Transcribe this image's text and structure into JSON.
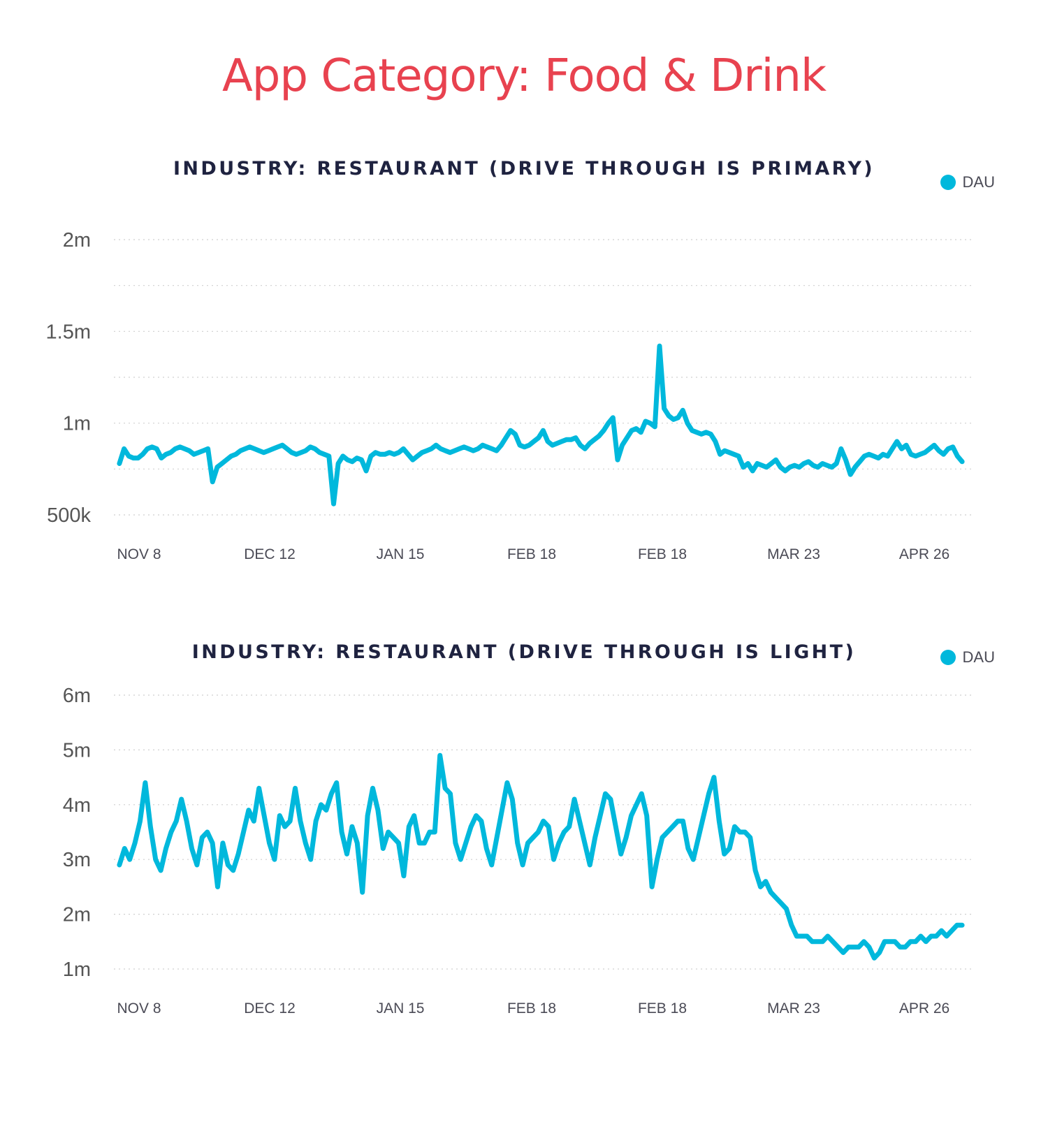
{
  "title": "App Category: Food & Drink",
  "colors": {
    "title": "#e8424f",
    "heading": "#1f2340",
    "series": "#00b8dc",
    "grid": "#cfcfcf"
  },
  "chart_data": [
    {
      "type": "line",
      "title": "INDUSTRY: RESTAURANT (DRIVE THROUGH IS PRIMARY)",
      "legend": [
        "DAU"
      ],
      "legend_position": "top-right",
      "grid": true,
      "ylim": [
        500000,
        2000000
      ],
      "yticks": [
        {
          "value": 500000,
          "label": "500k"
        },
        {
          "value": 1000000,
          "label": "1m"
        },
        {
          "value": 1500000,
          "label": "1.5m"
        },
        {
          "value": 2000000,
          "label": "2m"
        }
      ],
      "xticks": [
        "NOV 8",
        "DEC 12",
        "JAN 15",
        "FEB 18",
        "FEB 18",
        "MAR 23",
        "APR 26"
      ],
      "series": [
        {
          "name": "DAU",
          "x_range_label_index": [
            -0.15,
            6.3
          ],
          "values": [
            780000,
            860000,
            820000,
            810000,
            810000,
            830000,
            860000,
            870000,
            860000,
            810000,
            830000,
            840000,
            860000,
            870000,
            860000,
            850000,
            830000,
            840000,
            850000,
            860000,
            680000,
            760000,
            780000,
            800000,
            820000,
            830000,
            850000,
            860000,
            870000,
            860000,
            850000,
            840000,
            850000,
            860000,
            870000,
            880000,
            860000,
            840000,
            830000,
            840000,
            850000,
            870000,
            860000,
            840000,
            830000,
            820000,
            560000,
            780000,
            820000,
            800000,
            790000,
            810000,
            800000,
            740000,
            820000,
            840000,
            830000,
            830000,
            840000,
            830000,
            840000,
            860000,
            830000,
            800000,
            820000,
            840000,
            850000,
            860000,
            880000,
            860000,
            850000,
            840000,
            850000,
            860000,
            870000,
            860000,
            850000,
            860000,
            880000,
            870000,
            860000,
            850000,
            880000,
            920000,
            960000,
            940000,
            880000,
            870000,
            880000,
            900000,
            920000,
            960000,
            900000,
            880000,
            890000,
            900000,
            910000,
            910000,
            920000,
            880000,
            860000,
            890000,
            910000,
            930000,
            960000,
            1000000,
            1030000,
            800000,
            880000,
            920000,
            960000,
            970000,
            950000,
            1010000,
            1000000,
            980000,
            1420000,
            1080000,
            1040000,
            1020000,
            1030000,
            1070000,
            1000000,
            960000,
            950000,
            940000,
            950000,
            940000,
            900000,
            830000,
            850000,
            840000,
            830000,
            820000,
            760000,
            780000,
            740000,
            780000,
            770000,
            760000,
            780000,
            800000,
            760000,
            740000,
            760000,
            770000,
            760000,
            780000,
            790000,
            770000,
            760000,
            780000,
            770000,
            760000,
            780000,
            860000,
            800000,
            720000,
            760000,
            790000,
            820000,
            830000,
            820000,
            810000,
            830000,
            820000,
            860000,
            900000,
            860000,
            880000,
            830000,
            820000,
            830000,
            840000,
            860000,
            880000,
            850000,
            830000,
            860000,
            870000,
            820000,
            790000
          ]
        }
      ]
    },
    {
      "type": "line",
      "title": "INDUSTRY: RESTAURANT (DRIVE THROUGH IS LIGHT)",
      "legend": [
        "DAU"
      ],
      "legend_position": "top-right",
      "grid": true,
      "ylim": [
        1000000,
        6000000
      ],
      "yticks": [
        {
          "value": 1000000,
          "label": "1m"
        },
        {
          "value": 2000000,
          "label": "2m"
        },
        {
          "value": 3000000,
          "label": "3m"
        },
        {
          "value": 4000000,
          "label": "4m"
        },
        {
          "value": 5000000,
          "label": "5m"
        },
        {
          "value": 6000000,
          "label": "6m"
        }
      ],
      "xticks": [
        "NOV 8",
        "DEC 12",
        "JAN 15",
        "FEB 18",
        "FEB 18",
        "MAR 23",
        "APR 26"
      ],
      "series": [
        {
          "name": "DAU",
          "x_range_label_index": [
            -0.15,
            6.3
          ],
          "values": [
            2900000,
            3200000,
            3000000,
            3300000,
            3700000,
            4400000,
            3600000,
            3000000,
            2800000,
            3200000,
            3500000,
            3700000,
            4100000,
            3700000,
            3200000,
            2900000,
            3400000,
            3500000,
            3300000,
            2500000,
            3300000,
            2900000,
            2800000,
            3100000,
            3500000,
            3900000,
            3700000,
            4300000,
            3800000,
            3300000,
            3000000,
            3800000,
            3600000,
            3700000,
            4300000,
            3700000,
            3300000,
            3000000,
            3700000,
            4000000,
            3900000,
            4200000,
            4400000,
            3500000,
            3100000,
            3600000,
            3300000,
            2400000,
            3800000,
            4300000,
            3900000,
            3200000,
            3500000,
            3400000,
            3300000,
            2700000,
            3600000,
            3800000,
            3300000,
            3300000,
            3500000,
            3500000,
            4900000,
            4300000,
            4200000,
            3300000,
            3000000,
            3300000,
            3600000,
            3800000,
            3700000,
            3200000,
            2900000,
            3400000,
            3900000,
            4400000,
            4100000,
            3300000,
            2900000,
            3300000,
            3400000,
            3500000,
            3700000,
            3600000,
            3000000,
            3300000,
            3500000,
            3600000,
            4100000,
            3700000,
            3300000,
            2900000,
            3400000,
            3800000,
            4200000,
            4100000,
            3600000,
            3100000,
            3400000,
            3800000,
            4000000,
            4200000,
            3800000,
            2500000,
            3000000,
            3400000,
            3500000,
            3600000,
            3700000,
            3700000,
            3200000,
            3000000,
            3400000,
            3800000,
            4200000,
            4500000,
            3700000,
            3100000,
            3200000,
            3600000,
            3500000,
            3500000,
            3400000,
            2800000,
            2500000,
            2600000,
            2400000,
            2300000,
            2200000,
            2100000,
            1800000,
            1600000,
            1600000,
            1600000,
            1500000,
            1500000,
            1500000,
            1600000,
            1500000,
            1400000,
            1300000,
            1400000,
            1400000,
            1400000,
            1500000,
            1400000,
            1200000,
            1300000,
            1500000,
            1500000,
            1500000,
            1400000,
            1400000,
            1500000,
            1500000,
            1600000,
            1500000,
            1600000,
            1600000,
            1700000,
            1600000,
            1700000,
            1800000,
            1800000
          ]
        }
      ]
    }
  ]
}
